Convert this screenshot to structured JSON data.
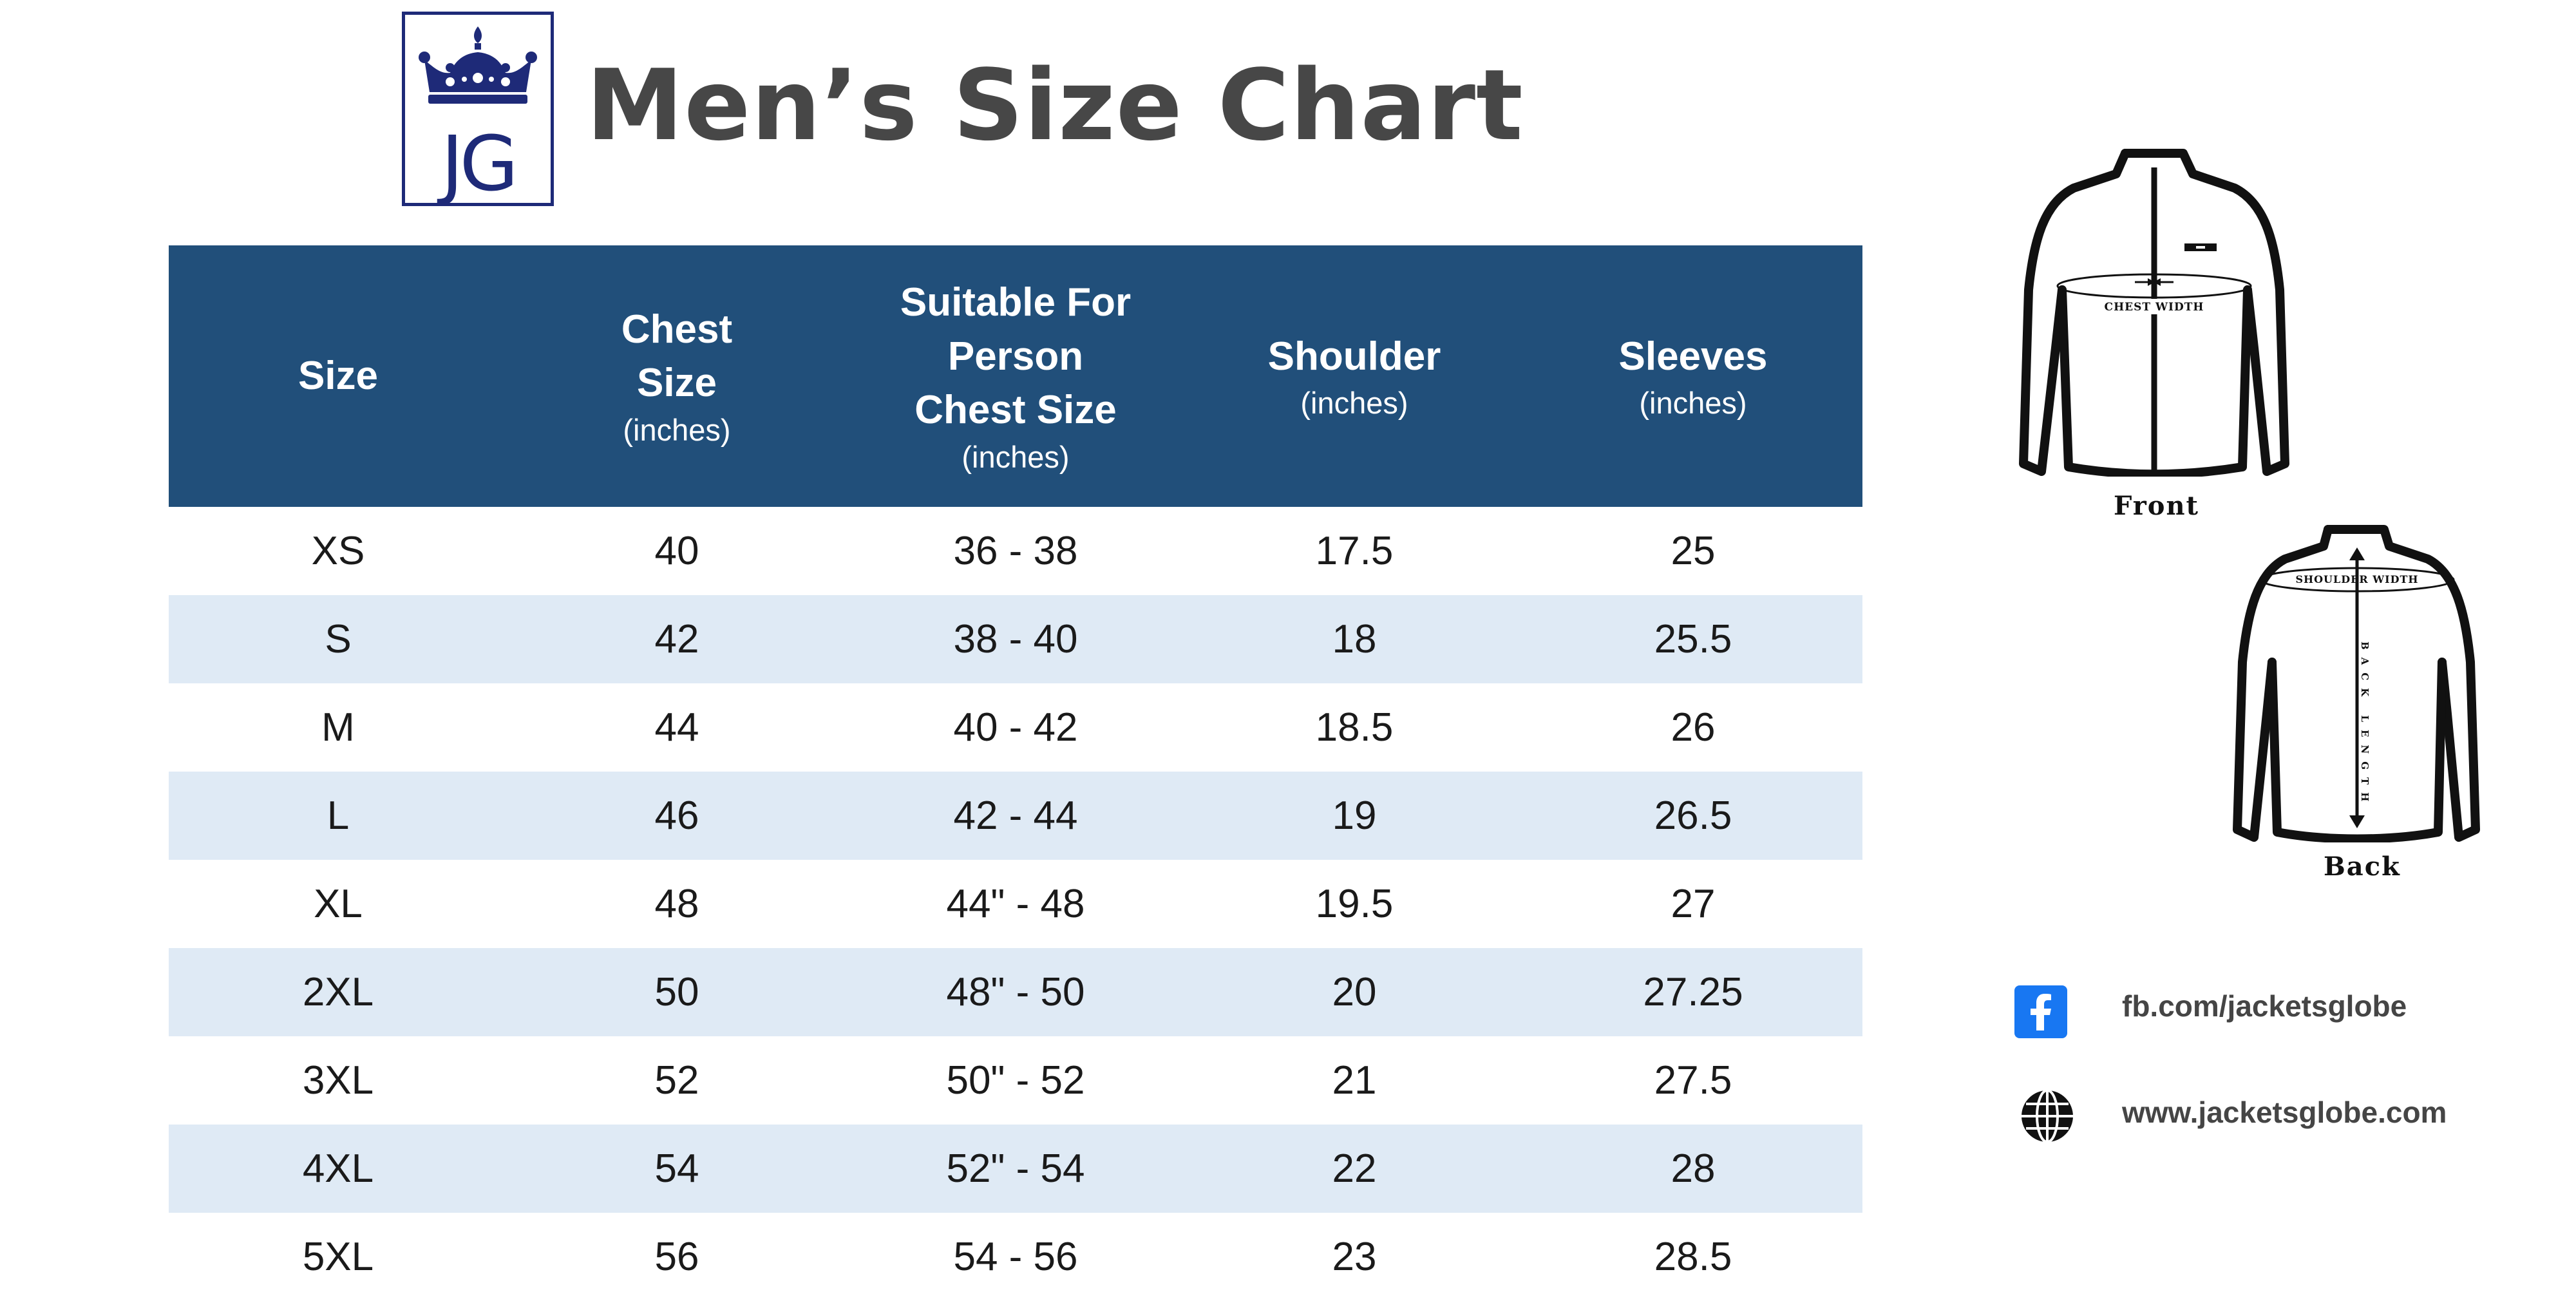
{
  "brand": {
    "logo_text": "JG",
    "accent": "#1e2a78"
  },
  "title": "Men’s Size Chart",
  "table": {
    "header_color": "#214f7a",
    "stripe_color": "#dfeaf5",
    "columns": [
      {
        "lines": [
          "Size"
        ],
        "unit": ""
      },
      {
        "lines": [
          "Chest",
          "Size"
        ],
        "unit": "(inches)"
      },
      {
        "lines": [
          "Suitable For",
          "Person",
          "Chest Size"
        ],
        "unit": "(inches)"
      },
      {
        "lines": [
          "Shoulder"
        ],
        "unit": "(inches)"
      },
      {
        "lines": [
          "Sleeves"
        ],
        "unit": "(inches)"
      }
    ],
    "rows": [
      [
        "XS",
        "40",
        "36 - 38",
        "17.5",
        "25"
      ],
      [
        "S",
        "42",
        "38 - 40",
        "18",
        "25.5"
      ],
      [
        "M",
        "44",
        "40 - 42",
        "18.5",
        "26"
      ],
      [
        "L",
        "46",
        "42 - 44",
        "19",
        "26.5"
      ],
      [
        "XL",
        "48",
        "44\" - 48",
        "19.5",
        "27"
      ],
      [
        "2XL",
        "50",
        "48\" - 50",
        "20",
        "27.25"
      ],
      [
        "3XL",
        "52",
        "50\" - 52",
        "21",
        "27.5"
      ],
      [
        "4XL",
        "54",
        "52\" - 54",
        "22",
        "28"
      ],
      [
        "5XL",
        "56",
        "54 - 56",
        "23",
        "28.5"
      ]
    ]
  },
  "diagrams": {
    "front": {
      "label": "Front",
      "measure": "CHEST WIDTH"
    },
    "back": {
      "label": "Back",
      "measure_top": "SHOULDER WIDTH",
      "measure_vertical": "BACK LENGTH"
    }
  },
  "social": {
    "facebook": {
      "icon": "facebook-icon",
      "text": "fb.com/jacketsglobe",
      "color": "#1877f2"
    },
    "website": {
      "icon": "globe-icon",
      "text": "www.jacketsglobe.com"
    }
  }
}
